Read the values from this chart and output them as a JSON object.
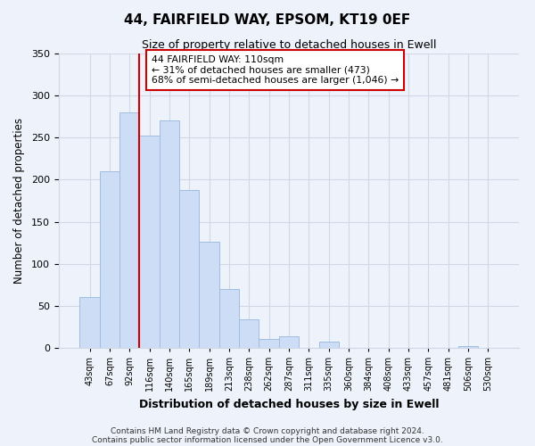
{
  "title": "44, FAIRFIELD WAY, EPSOM, KT19 0EF",
  "subtitle": "Size of property relative to detached houses in Ewell",
  "xlabel": "Distribution of detached houses by size in Ewell",
  "ylabel": "Number of detached properties",
  "bar_labels": [
    "43sqm",
    "67sqm",
    "92sqm",
    "116sqm",
    "140sqm",
    "165sqm",
    "189sqm",
    "213sqm",
    "238sqm",
    "262sqm",
    "287sqm",
    "311sqm",
    "335sqm",
    "360sqm",
    "384sqm",
    "408sqm",
    "433sqm",
    "457sqm",
    "481sqm",
    "506sqm",
    "530sqm"
  ],
  "bar_values": [
    60,
    210,
    280,
    252,
    270,
    188,
    126,
    70,
    34,
    11,
    14,
    0,
    7,
    0,
    0,
    0,
    0,
    0,
    0,
    2,
    0
  ],
  "bar_color": "#ccddf5",
  "bar_edge_color": "#a0bce0",
  "vline_color": "#cc0000",
  "annotation_text": "44 FAIRFIELD WAY: 110sqm\n← 31% of detached houses are smaller (473)\n68% of semi-detached houses are larger (1,046) →",
  "annotation_box_color": "white",
  "annotation_box_edge": "#cc0000",
  "ylim": [
    0,
    350
  ],
  "yticks": [
    0,
    50,
    100,
    150,
    200,
    250,
    300,
    350
  ],
  "grid_color": "#d0d8e8",
  "footer_line1": "Contains HM Land Registry data © Crown copyright and database right 2024.",
  "footer_line2": "Contains public sector information licensed under the Open Government Licence v3.0.",
  "background_color": "#eef2fa"
}
